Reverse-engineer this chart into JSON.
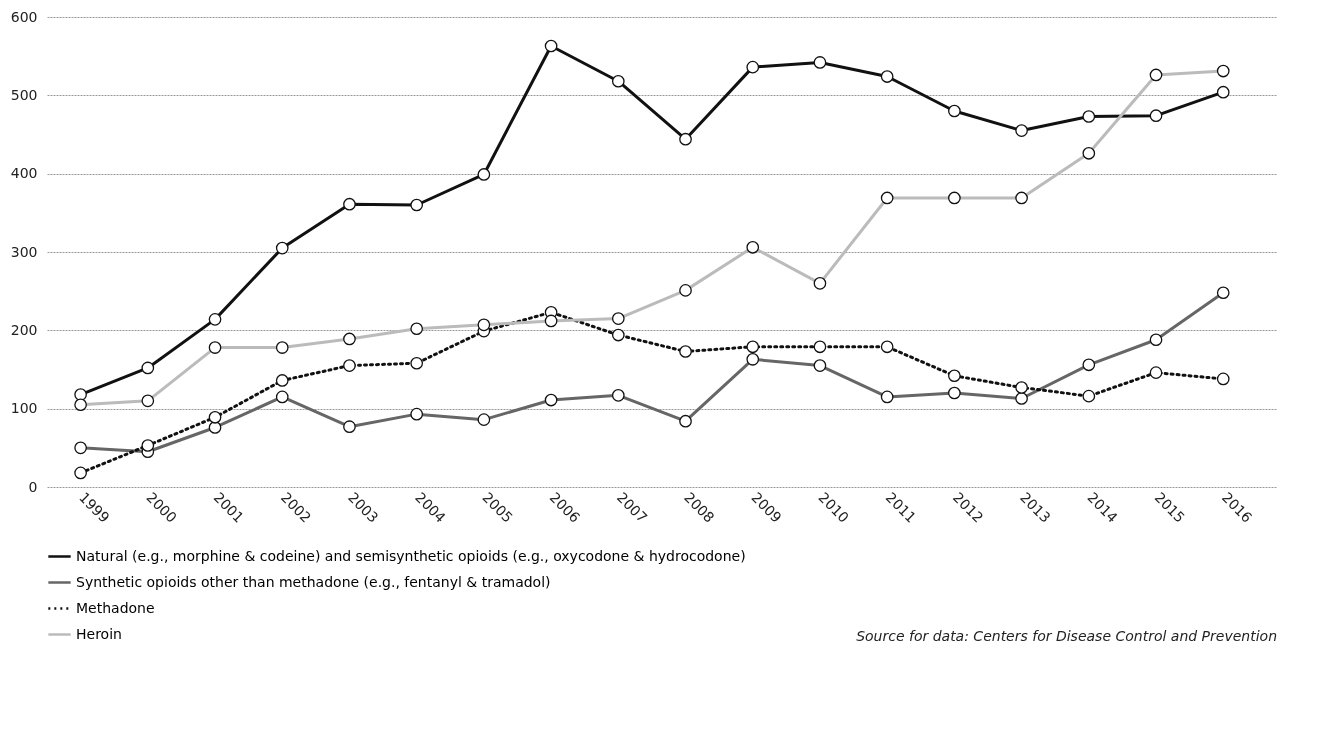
{
  "chart_data": {
    "type": "line",
    "categories": [
      "1999",
      "2000",
      "2001",
      "2002",
      "2003",
      "2004",
      "2005",
      "2006",
      "2007",
      "2008",
      "2009",
      "2010",
      "2011",
      "2012",
      "2013",
      "2014",
      "2015",
      "2016"
    ],
    "series": [
      {
        "name": "Natural (e.g., morphine & codeine) and semisynthetic opioids (e.g., oxycodone & hydrocodone)",
        "color": "#111111",
        "line_style": "solid",
        "values": [
          118,
          152,
          214,
          305,
          361,
          360,
          399,
          563,
          518,
          444,
          536,
          542,
          524,
          480,
          455,
          473,
          474,
          504
        ]
      },
      {
        "name": "Synthetic opioids other than methadone (e.g., fentanyl & tramadol)",
        "color": "#666666",
        "line_style": "solid",
        "values": [
          50,
          45,
          76,
          115,
          77,
          93,
          86,
          111,
          117,
          84,
          163,
          155,
          115,
          120,
          113,
          156,
          188,
          248
        ]
      },
      {
        "name": "Methadone",
        "color": "#111111",
        "line_style": "dotted",
        "values": [
          18,
          53,
          89,
          136,
          155,
          158,
          199,
          223,
          194,
          173,
          179,
          179,
          179,
          142,
          127,
          116,
          146,
          138
        ]
      },
      {
        "name": "Heroin",
        "color": "#bbbbbb",
        "line_style": "solid",
        "values": [
          105,
          110,
          178,
          178,
          189,
          202,
          207,
          212,
          215,
          251,
          306,
          260,
          369,
          369,
          369,
          426,
          526,
          531
        ]
      }
    ],
    "ylim": [
      0,
      600
    ],
    "yticks": [
      0,
      100,
      200,
      300,
      400,
      500,
      600
    ],
    "grid": "y",
    "legend": "bottom left",
    "marker": "circle",
    "annotations": [
      "Source for data: Centers for Disease Control and Prevention"
    ]
  }
}
